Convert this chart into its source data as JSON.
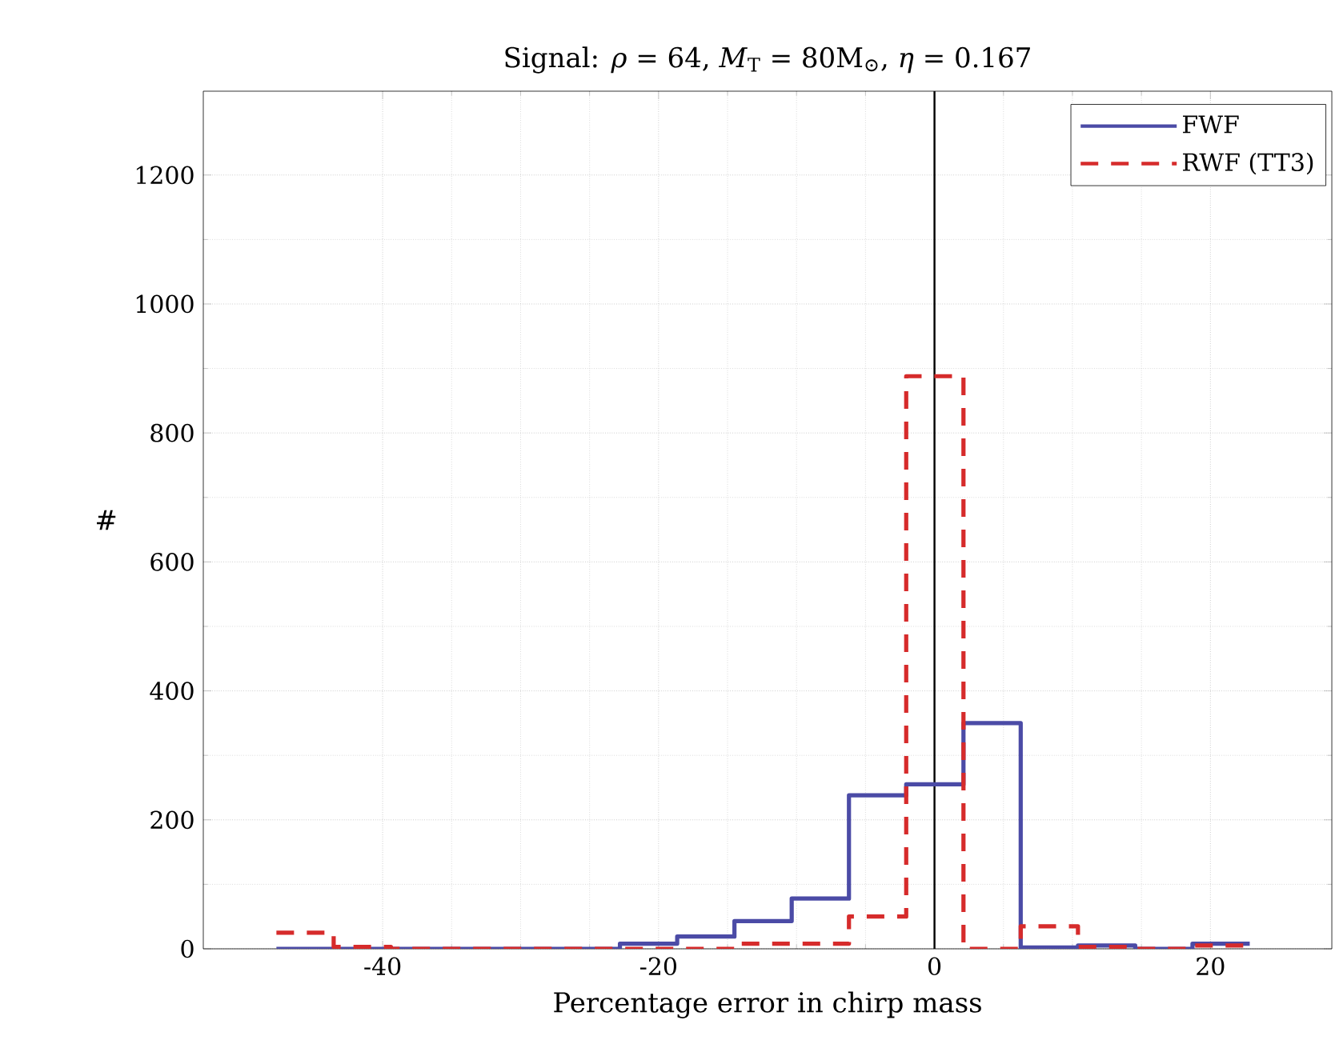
{
  "chart_data": {
    "type": "histogram",
    "title": "Signal: *ρ* = 64, *M*$_{T}$ = 80M$_{⊙}$, *η* = 0.167",
    "xlabel": "Percentage error in chirp mass",
    "ylabel": "#",
    "bins": [
      -47.7,
      -43.55,
      -39.4,
      -35.25,
      -31.1,
      -26.95,
      -22.8,
      -18.65,
      -14.5,
      -10.35,
      -6.2,
      -2.05,
      2.1,
      6.25,
      10.4,
      14.55,
      18.7,
      22.85
    ],
    "series": [
      {
        "name": "FWF",
        "color": "#4b4ba6",
        "line_style": "solid",
        "values": [
          0,
          0,
          0,
          0,
          0,
          0,
          8,
          19,
          43,
          78,
          238,
          255,
          350,
          2,
          5,
          0,
          8
        ]
      },
      {
        "name": "RWF (TT3)",
        "color": "#d62b2b",
        "line_style": "dashed",
        "values": [
          25,
          3,
          0,
          0,
          0,
          0,
          0,
          0,
          8,
          8,
          50,
          888,
          0,
          35,
          3,
          0,
          5
        ]
      }
    ],
    "xlim": [
      -53,
      28.8
    ],
    "ylim": [
      0,
      1330
    ],
    "xticks": [
      -40,
      -20,
      0,
      20
    ],
    "yticks": [
      0,
      200,
      400,
      600,
      800,
      1000,
      1200
    ],
    "ref_lines": [
      {
        "axis": "x",
        "value": 0,
        "color": "#000000"
      }
    ],
    "grid": true,
    "legend": "top right"
  }
}
